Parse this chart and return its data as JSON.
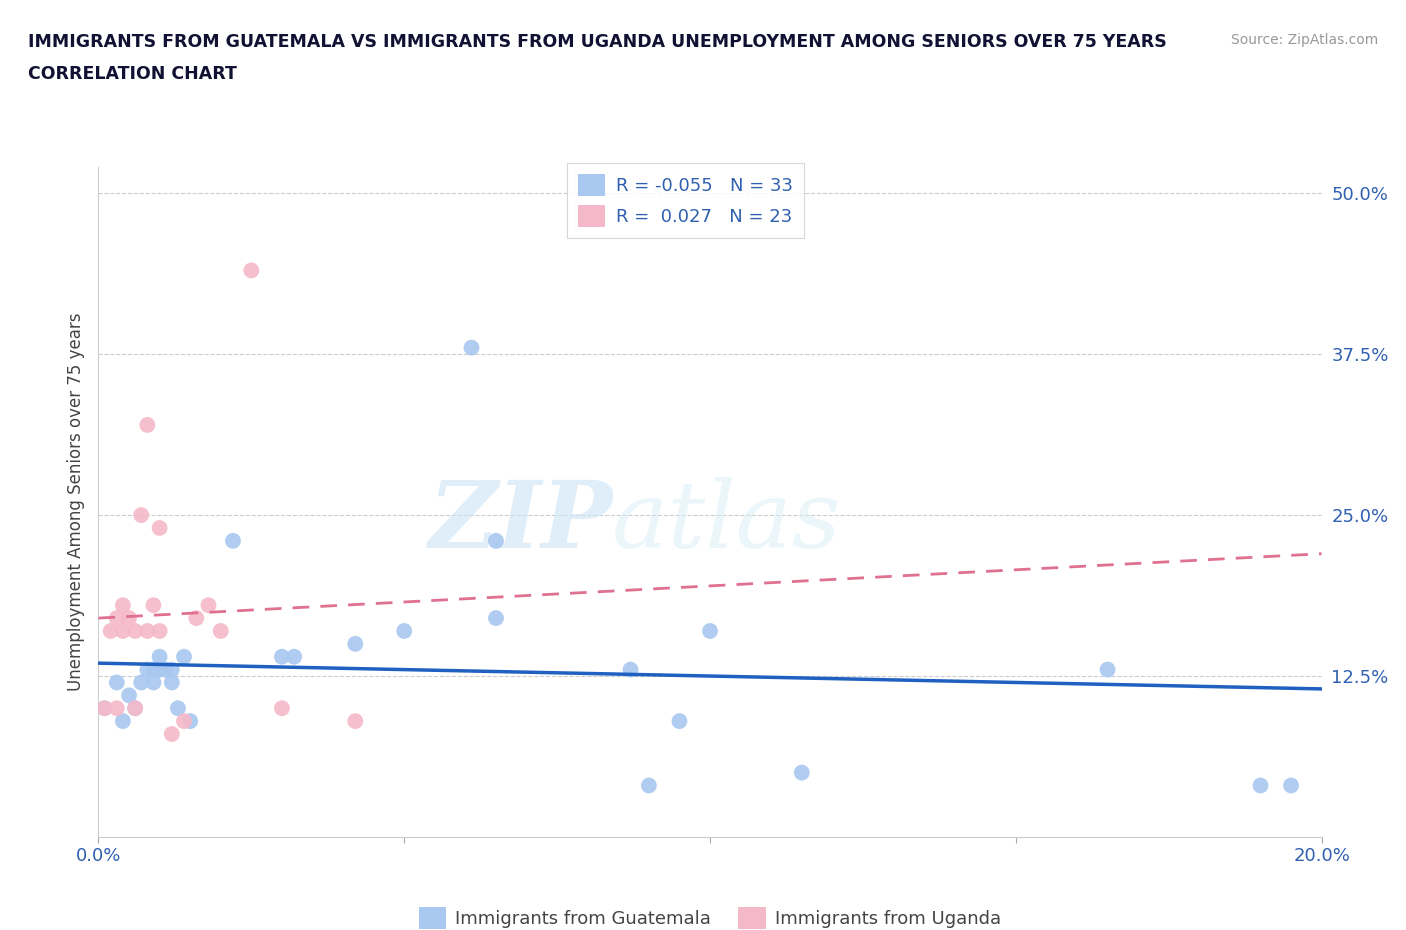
{
  "title_line1": "IMMIGRANTS FROM GUATEMALA VS IMMIGRANTS FROM UGANDA UNEMPLOYMENT AMONG SENIORS OVER 75 YEARS",
  "title_line2": "CORRELATION CHART",
  "source_text": "Source: ZipAtlas.com",
  "ylabel": "Unemployment Among Seniors over 75 years",
  "xlim": [
    0.0,
    0.2
  ],
  "ylim": [
    0.0,
    0.52
  ],
  "xticks": [
    0.0,
    0.05,
    0.1,
    0.15,
    0.2
  ],
  "xticklabels": [
    "0.0%",
    "",
    "",
    "",
    "20.0%"
  ],
  "yticks_right": [
    0.0,
    0.125,
    0.25,
    0.375,
    0.5
  ],
  "yticklabels_right": [
    "",
    "12.5%",
    "25.0%",
    "37.5%",
    "50.0%"
  ],
  "r_guatemala": -0.055,
  "n_guatemala": 33,
  "r_uganda": 0.027,
  "n_uganda": 23,
  "watermark_zip": "ZIP",
  "watermark_atlas": "atlas",
  "color_guatemala": "#a8c8f0",
  "color_uganda": "#f5b8c8",
  "line_color_guatemala": "#2060c0",
  "line_color_uganda": "#e07090",
  "guatemala_x": [
    0.001,
    0.003,
    0.004,
    0.005,
    0.006,
    0.007,
    0.008,
    0.009,
    0.009,
    0.01,
    0.01,
    0.011,
    0.012,
    0.012,
    0.013,
    0.014,
    0.015,
    0.022,
    0.03,
    0.032,
    0.042,
    0.05,
    0.061,
    0.065,
    0.065,
    0.087,
    0.09,
    0.095,
    0.1,
    0.115,
    0.165,
    0.19,
    0.195
  ],
  "guatemala_y": [
    0.1,
    0.12,
    0.09,
    0.11,
    0.1,
    0.12,
    0.13,
    0.13,
    0.12,
    0.14,
    0.13,
    0.13,
    0.12,
    0.13,
    0.1,
    0.14,
    0.09,
    0.23,
    0.14,
    0.14,
    0.15,
    0.16,
    0.38,
    0.23,
    0.17,
    0.13,
    0.04,
    0.09,
    0.16,
    0.05,
    0.13,
    0.04,
    0.04
  ],
  "uganda_x": [
    0.001,
    0.002,
    0.003,
    0.003,
    0.004,
    0.004,
    0.005,
    0.006,
    0.006,
    0.007,
    0.008,
    0.008,
    0.009,
    0.01,
    0.01,
    0.012,
    0.014,
    0.016,
    0.018,
    0.02,
    0.025,
    0.03,
    0.042
  ],
  "uganda_y": [
    0.1,
    0.16,
    0.17,
    0.1,
    0.18,
    0.16,
    0.17,
    0.1,
    0.16,
    0.25,
    0.32,
    0.16,
    0.18,
    0.16,
    0.24,
    0.08,
    0.09,
    0.17,
    0.18,
    0.16,
    0.44,
    0.1,
    0.09
  ]
}
